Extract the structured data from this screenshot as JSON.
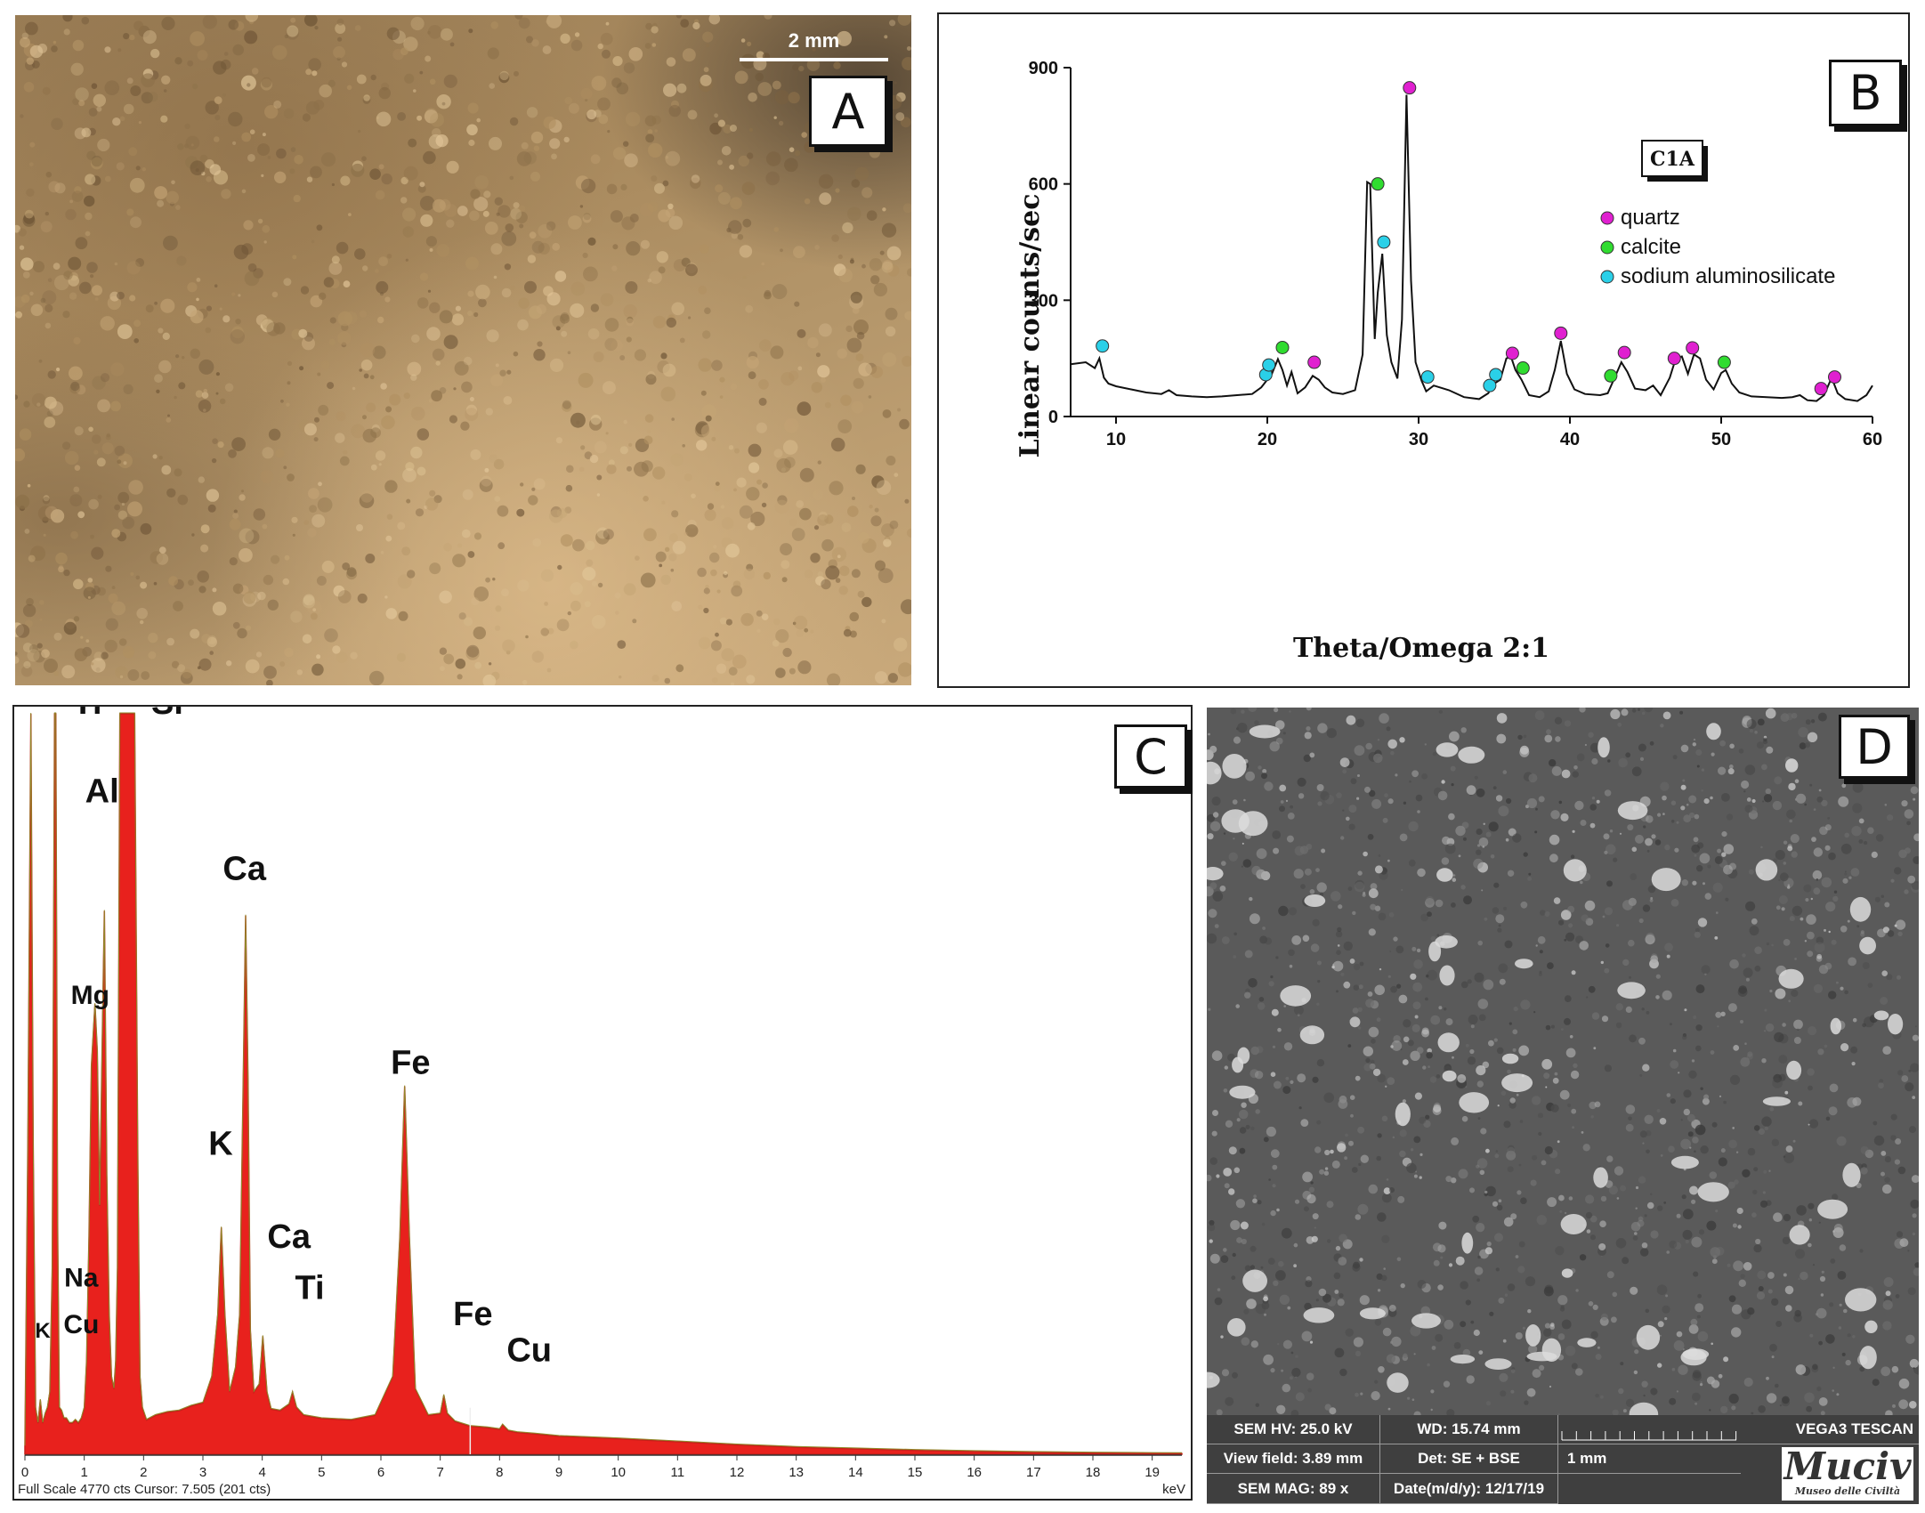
{
  "panels": {
    "a": {
      "letter": "A",
      "scale_bar": "2 mm"
    },
    "b": {
      "letter": "B"
    },
    "c": {
      "letter": "C"
    },
    "d": {
      "letter": "D"
    }
  },
  "chart_data": [
    {
      "panel": "B",
      "type": "line",
      "xlabel": "Theta/Omega 2:1",
      "ylabel": "Linear counts/sec",
      "sample_label": "C1A",
      "xlim": [
        7,
        60
      ],
      "ylim": [
        0,
        900
      ],
      "xticks": [
        10,
        20,
        30,
        40,
        50,
        60
      ],
      "yticks": [
        0,
        300,
        600,
        900
      ],
      "grid": false,
      "legend_position": "top-right",
      "series": [
        {
          "x": [
            7,
            8,
            8.6,
            8.9,
            9.2,
            9.5,
            10,
            11,
            12,
            13,
            13.5,
            14,
            15,
            16,
            17,
            18,
            19,
            19.6,
            19.9,
            20.3,
            20.7,
            21,
            21.3,
            21.6,
            22,
            22.5,
            23,
            23.4,
            23.8,
            24.3,
            25,
            25.8,
            26.3,
            26.6,
            26.8,
            27.1,
            27.3,
            27.6,
            27.9,
            28.2,
            28.6,
            28.9,
            29.2,
            29.5,
            29.8,
            30.2,
            30.5,
            31,
            32,
            33,
            34,
            34.6,
            35,
            35.4,
            35.8,
            36.1,
            36.4,
            36.8,
            37.3,
            38,
            38.6,
            39,
            39.4,
            39.8,
            40.3,
            41,
            42,
            42.5,
            42.9,
            43.4,
            43.8,
            44.3,
            45,
            45.5,
            46,
            46.6,
            47,
            47.4,
            47.8,
            48.2,
            48.6,
            49,
            49.5,
            50,
            50.3,
            50.7,
            51.2,
            52,
            53,
            54,
            54.7,
            55.2,
            55.7,
            56.3,
            56.8,
            57.3,
            57.7,
            58.2,
            59,
            59.6,
            60
          ],
          "y": [
            135,
            140,
            125,
            150,
            100,
            85,
            78,
            70,
            62,
            58,
            68,
            55,
            52,
            50,
            52,
            55,
            58,
            75,
            90,
            110,
            148,
            120,
            80,
            115,
            60,
            75,
            105,
            95,
            75,
            62,
            58,
            68,
            160,
            605,
            600,
            200,
            320,
            420,
            210,
            140,
            98,
            250,
            830,
            350,
            140,
            92,
            65,
            80,
            68,
            50,
            45,
            60,
            85,
            95,
            150,
            155,
            120,
            95,
            55,
            50,
            65,
            120,
            195,
            110,
            70,
            58,
            55,
            60,
            95,
            140,
            115,
            72,
            68,
            80,
            55,
            100,
            150,
            155,
            110,
            160,
            150,
            95,
            70,
            112,
            120,
            85,
            62,
            52,
            50,
            48,
            50,
            55,
            42,
            40,
            55,
            100,
            60,
            45,
            40,
            55,
            80
          ]
        }
      ],
      "markers": {
        "quartz": {
          "color": "#e020d0",
          "points": [
            [
              23.1,
              140
            ],
            [
              29.4,
              848
            ],
            [
              36.2,
              163
            ],
            [
              39.4,
              215
            ],
            [
              43.6,
              165
            ],
            [
              46.9,
              150
            ],
            [
              48.1,
              177
            ],
            [
              56.6,
              72
            ],
            [
              57.5,
              102
            ]
          ]
        },
        "calcite": {
          "color": "#30dc30",
          "points": [
            [
              21.0,
              178
            ],
            [
              27.3,
              600
            ],
            [
              36.9,
              125
            ],
            [
              42.7,
              105
            ],
            [
              50.2,
              140
            ]
          ]
        },
        "sodium aluminosilicate": {
          "color": "#2ad0e8",
          "points": [
            [
              9.1,
              182
            ],
            [
              19.9,
              108
            ],
            [
              20.1,
              133
            ],
            [
              27.7,
              450
            ],
            [
              30.6,
              102
            ],
            [
              34.7,
              80
            ],
            [
              35.1,
              108
            ]
          ]
        }
      },
      "legend": [
        {
          "label": "quartz",
          "color": "#e020d0"
        },
        {
          "label": "calcite",
          "color": "#30dc30"
        },
        {
          "label": "sodium aluminosilicate",
          "color": "#2ad0e8"
        }
      ]
    },
    {
      "panel": "C",
      "type": "area",
      "xlabel": "keV",
      "xlim": [
        0,
        19.5
      ],
      "xticks": [
        0,
        1,
        2,
        3,
        4,
        5,
        6,
        7,
        8,
        9,
        10,
        11,
        12,
        13,
        14,
        15,
        16,
        17,
        18,
        19
      ],
      "footer": "Full Scale 4770 cts Cursor: 7.505  (201 cts)",
      "full_scale": 4770,
      "cursor_kev": 7.505,
      "series": [
        {
          "name": "EDS spectrum",
          "color": "#e8211d",
          "x": [
            0,
            0.05,
            0.1,
            0.14,
            0.18,
            0.22,
            0.26,
            0.3,
            0.34,
            0.38,
            0.42,
            0.46,
            0.5,
            0.52,
            0.55,
            0.58,
            0.62,
            0.66,
            0.7,
            0.75,
            0.8,
            0.85,
            0.9,
            0.95,
            1.0,
            1.04,
            1.08,
            1.12,
            1.18,
            1.22,
            1.26,
            1.3,
            1.34,
            1.38,
            1.42,
            1.46,
            1.5,
            1.53,
            1.56,
            1.6,
            1.64,
            1.68,
            1.72,
            1.76,
            1.8,
            1.85,
            1.9,
            1.94,
            1.98,
            2.05,
            2.2,
            2.4,
            2.6,
            2.8,
            3.0,
            3.15,
            3.25,
            3.31,
            3.37,
            3.45,
            3.55,
            3.62,
            3.68,
            3.72,
            3.76,
            3.8,
            3.86,
            3.95,
            4.01,
            4.08,
            4.15,
            4.3,
            4.45,
            4.51,
            4.58,
            4.7,
            5.0,
            5.5,
            5.9,
            6.2,
            6.32,
            6.4,
            6.48,
            6.58,
            6.8,
            7.0,
            7.06,
            7.12,
            7.25,
            7.5,
            7.8,
            8.0,
            8.05,
            8.15,
            8.3,
            8.6,
            9,
            10,
            11,
            12,
            13,
            14,
            15,
            16,
            17,
            18,
            19,
            19.5
          ],
          "y": [
            50,
            2000,
            4770,
            2000,
            300,
            200,
            350,
            200,
            260,
            300,
            400,
            1200,
            4770,
            4770,
            1500,
            300,
            280,
            230,
            230,
            200,
            200,
            220,
            200,
            230,
            300,
            600,
            1400,
            2500,
            2900,
            2600,
            1600,
            2600,
            3500,
            1800,
            900,
            500,
            420,
            600,
            1200,
            4770,
            4770,
            4770,
            4770,
            4770,
            4770,
            4770,
            2000,
            500,
            300,
            220,
            250,
            270,
            280,
            310,
            330,
            500,
            900,
            1460,
            900,
            400,
            560,
            900,
            2400,
            3470,
            2400,
            800,
            400,
            450,
            760,
            400,
            290,
            280,
            320,
            400,
            300,
            250,
            230,
            220,
            250,
            500,
            1400,
            2370,
            1400,
            420,
            250,
            260,
            380,
            260,
            210,
            180,
            170,
            160,
            190,
            150,
            140,
            130,
            115,
            100,
            80,
            60,
            45,
            35,
            25,
            18,
            12,
            8,
            5,
            4
          ]
        }
      ],
      "element_labels": [
        {
          "text": "Ti",
          "kev": 1.05,
          "cts": 4770
        },
        {
          "text": "Si",
          "kev": 2.4,
          "cts": 4770
        },
        {
          "text": "Al",
          "kev": 1.3,
          "cts": 4200
        },
        {
          "text": "Ca",
          "kev": 3.7,
          "cts": 3700
        },
        {
          "text": "Mg",
          "kev": 1.1,
          "cts": 2900
        },
        {
          "text": "Fe",
          "kev": 6.5,
          "cts": 2450
        },
        {
          "text": "K",
          "kev": 3.3,
          "cts": 1930
        },
        {
          "text": "Ca",
          "kev": 4.45,
          "cts": 1330
        },
        {
          "text": "Ti",
          "kev": 4.8,
          "cts": 1000
        },
        {
          "text": "Na",
          "kev": 0.95,
          "cts": 1080
        },
        {
          "text": "Cu",
          "kev": 0.95,
          "cts": 780
        },
        {
          "text": "K",
          "kev": 0.3,
          "cts": 750
        },
        {
          "text": "Fe",
          "kev": 7.55,
          "cts": 830
        },
        {
          "text": "Cu",
          "kev": 8.5,
          "cts": 600
        }
      ]
    }
  ],
  "sem_info": {
    "hv": "SEM HV: 25.0 kV",
    "wd": "WD: 15.74 mm",
    "instrument": "VEGA3 TESCAN",
    "view_field": "View field: 3.89 mm",
    "detector": "Det: SE + BSE",
    "scale": "1 mm",
    "mag": "SEM MAG: 89 x",
    "date": "Date(m/d/y): 12/17/19",
    "logo_main": "Muciv",
    "logo_sub": "Museo delle Civiltà"
  }
}
